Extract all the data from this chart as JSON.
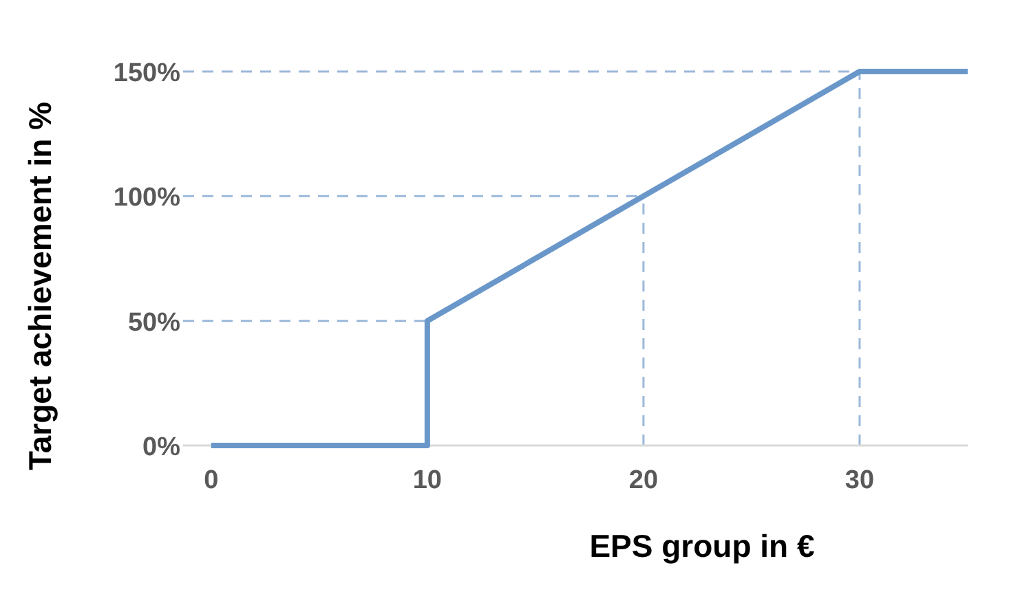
{
  "chart_data": {
    "type": "line",
    "xlabel": "EPS group in €",
    "ylabel": "Target achievement in %",
    "x": [
      0,
      10,
      10,
      20,
      30,
      35
    ],
    "series": [
      {
        "color": "#6a97c9",
        "values": [
          0,
          0,
          50,
          100,
          150,
          150
        ]
      }
    ],
    "xlim": [
      -1.3,
      35
    ],
    "ylim": [
      0,
      150
    ],
    "xticks": [
      0,
      10,
      20,
      30
    ],
    "yticks": [
      {
        "value": 0,
        "label": "0%"
      },
      {
        "value": 50,
        "label": "50%"
      },
      {
        "value": 100,
        "label": "100%"
      },
      {
        "value": 150,
        "label": "150%"
      }
    ],
    "ref_lines": [
      {
        "axis": "y",
        "value": 50,
        "color": "#9bb8da",
        "line_style": "dashed"
      },
      {
        "axis": "y",
        "value": 100,
        "color": "#9bb8da",
        "line_style": "dashed"
      },
      {
        "axis": "y",
        "value": 150,
        "color": "#9bb8da",
        "line_style": "dashed"
      },
      {
        "axis": "x",
        "value": 20,
        "color": "#9bb8da",
        "line_style": "dashed"
      },
      {
        "axis": "x",
        "value": 30,
        "color": "#9bb8da",
        "line_style": "dashed"
      }
    ],
    "marker": "none",
    "line_style": "solid"
  }
}
